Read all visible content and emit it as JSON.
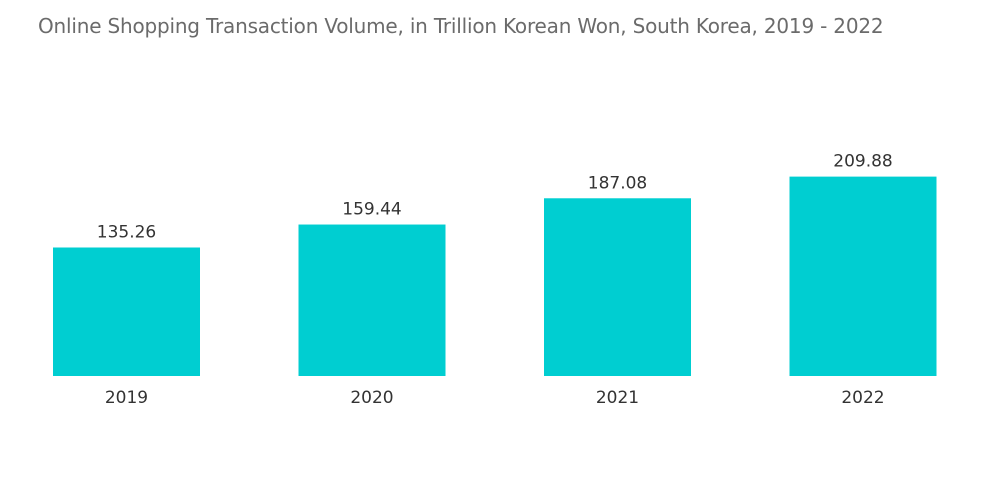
{
  "chart_data": {
    "type": "bar",
    "title": "Online Shopping Transaction Volume, in Trillion Korean Won, South Korea, 2019 - 2022",
    "categories": [
      "2019",
      "2020",
      "2021",
      "2022"
    ],
    "values": [
      135.26,
      159.44,
      187.08,
      209.88
    ],
    "value_labels": [
      "135.26",
      "159.44",
      "187.08",
      "209.88"
    ],
    "xlabel": "",
    "ylabel": "",
    "ylim": [
      0,
      250
    ],
    "grid": false,
    "legend": "none",
    "bar_color": "#00CED1"
  }
}
